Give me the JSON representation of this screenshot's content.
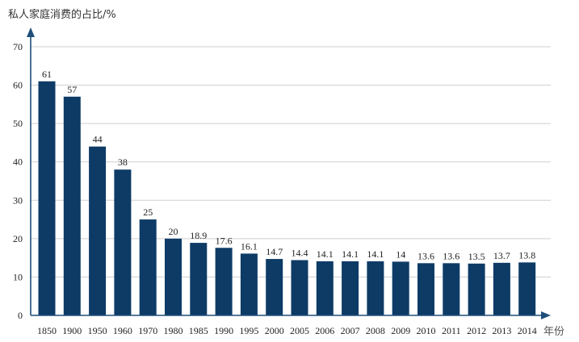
{
  "chart_data": {
    "type": "bar",
    "title": "",
    "ylabel": "私人家庭消费的占比/%",
    "xlabel": "年份",
    "ylim": [
      0,
      70
    ],
    "yticks": [
      0,
      10,
      20,
      30,
      40,
      50,
      60,
      70
    ],
    "grid": true,
    "bar_color": "#0d3b66",
    "categories": [
      "1850",
      "1900",
      "1950",
      "1960",
      "1970",
      "1980",
      "1985",
      "1990",
      "1995",
      "2000",
      "2005",
      "2006",
      "2007",
      "2008",
      "2009",
      "2010",
      "2011",
      "2012",
      "2013",
      "2014"
    ],
    "values": [
      61,
      57,
      44,
      38,
      25,
      20,
      18.9,
      17.6,
      16.1,
      14.7,
      14.4,
      14.1,
      14.1,
      14.1,
      14,
      13.6,
      13.6,
      13.5,
      13.7,
      13.8
    ],
    "value_labels": [
      "61",
      "57",
      "44",
      "38",
      "25",
      "20",
      "18.9",
      "17.6",
      "16.1",
      "14.7",
      "14.4",
      "14.1",
      "14.1",
      "14.1",
      "14",
      "13.6",
      "13.6",
      "13.5",
      "13.7",
      "13.8"
    ]
  }
}
